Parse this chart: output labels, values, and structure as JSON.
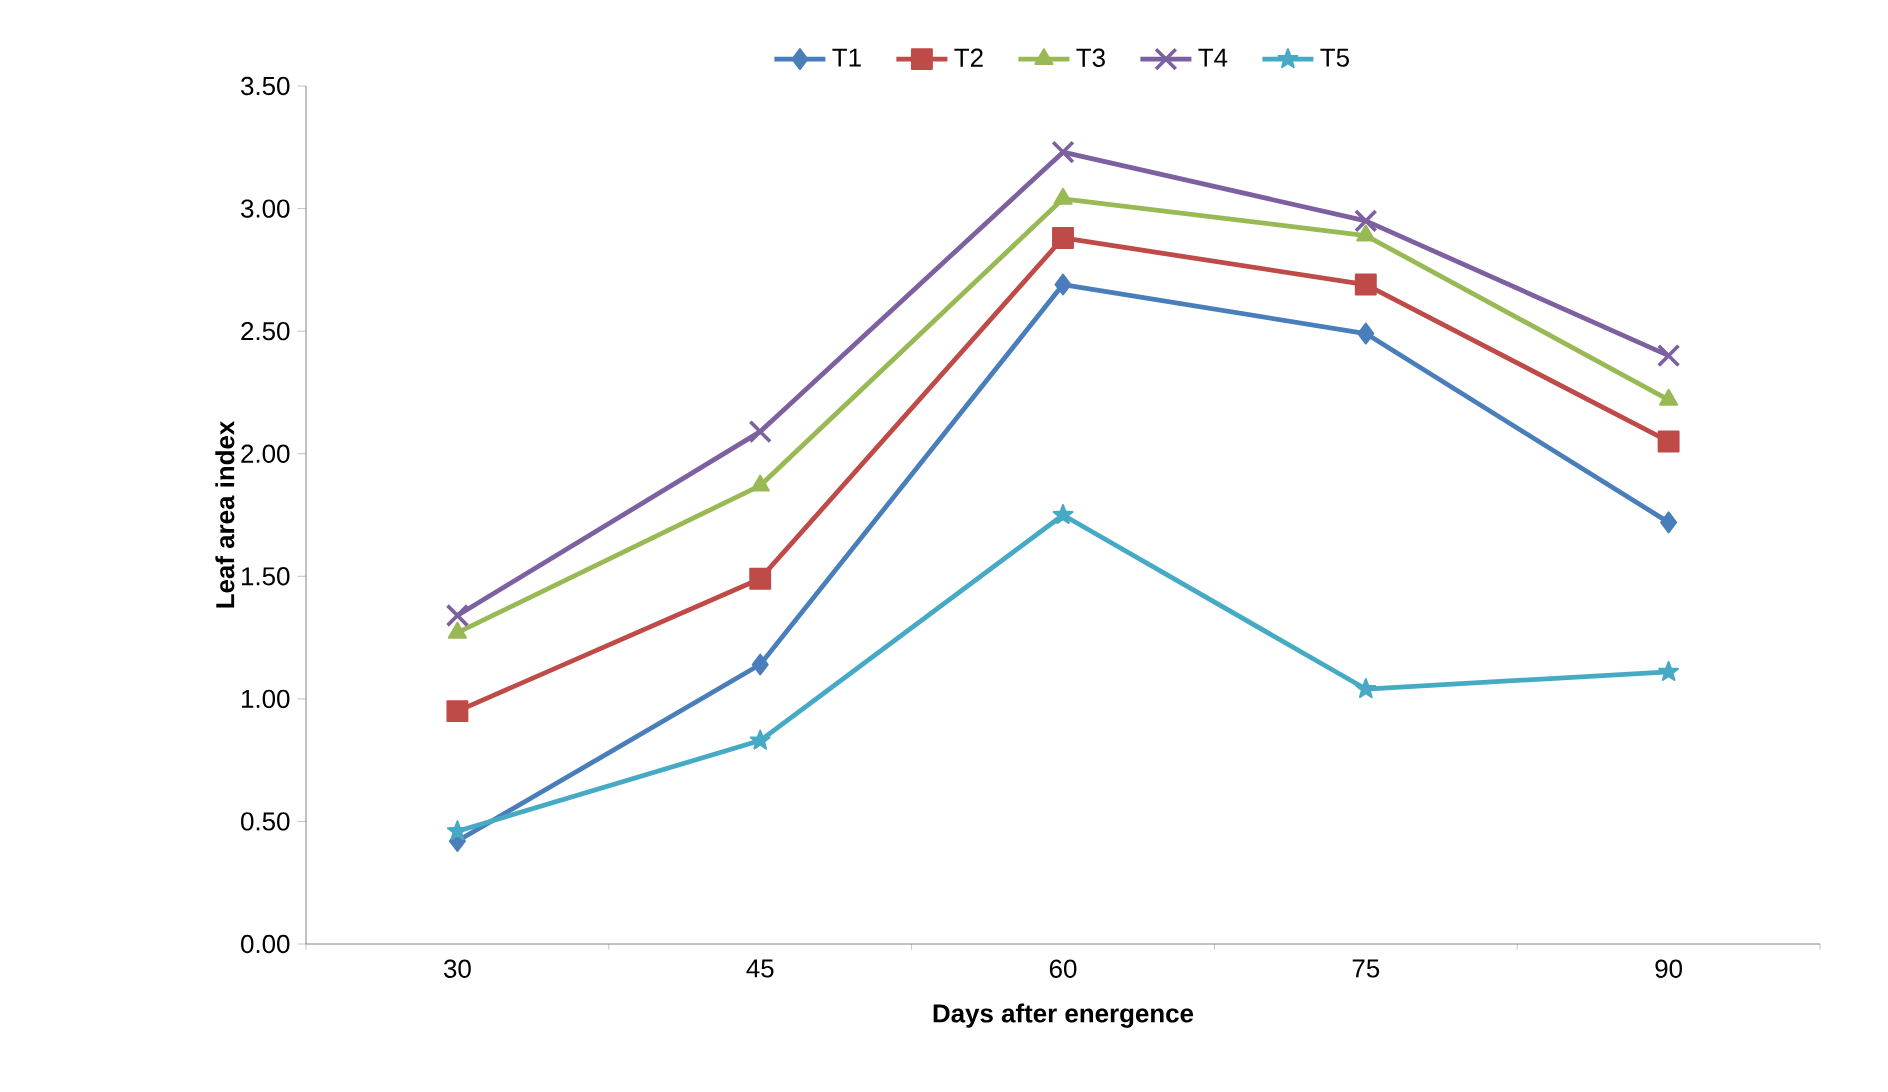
{
  "chart_data": {
    "type": "line",
    "xlabel": "Days after energence",
    "ylabel": "Leaf area index",
    "categories": [
      "30",
      "45",
      "60",
      "75",
      "90"
    ],
    "ylim": [
      0,
      3.5
    ],
    "yticks": [
      {
        "value": 0,
        "label": "0.00"
      },
      {
        "value": 0.5,
        "label": "0.50"
      },
      {
        "value": 1,
        "label": "1.00"
      },
      {
        "value": 1.5,
        "label": "1.50"
      },
      {
        "value": 2,
        "label": "2.00"
      },
      {
        "value": 2.5,
        "label": "2.50"
      },
      {
        "value": 3,
        "label": "3.00"
      },
      {
        "value": 3.5,
        "label": "3.50"
      }
    ],
    "grid": false,
    "legend": "top",
    "series": [
      {
        "name": "T1",
        "color": "#4a7ebb",
        "marker": "diamond",
        "values": [
          0.42,
          1.14,
          2.69,
          2.49,
          1.72
        ]
      },
      {
        "name": "T2",
        "color": "#be4b48",
        "marker": "square",
        "values": [
          0.95,
          1.49,
          2.88,
          2.69,
          2.05
        ]
      },
      {
        "name": "T3",
        "color": "#98b954",
        "marker": "triangle",
        "values": [
          1.27,
          1.87,
          3.04,
          2.89,
          2.22
        ]
      },
      {
        "name": "T4",
        "color": "#7d60a0",
        "marker": "cross",
        "values": [
          1.34,
          2.09,
          3.23,
          2.95,
          2.4
        ]
      },
      {
        "name": "T5",
        "color": "#46aac5",
        "marker": "star",
        "values": [
          0.46,
          0.83,
          1.75,
          1.04,
          1.11
        ]
      }
    ]
  }
}
